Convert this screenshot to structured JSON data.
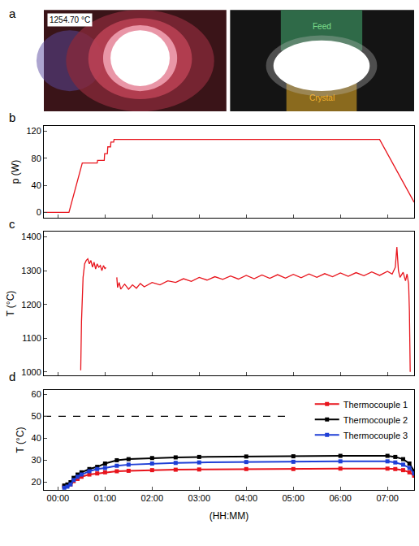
{
  "image_panel": {
    "panel": "a",
    "temperature_label": "1254.70 °C",
    "regions": {
      "feed": "Feed",
      "crystal": "Crystal"
    }
  },
  "chart_data": [
    {
      "panel": "b",
      "type": "line",
      "y_label": "p (W)",
      "xlim": [
        -18,
        454
      ],
      "xticks": [
        0,
        60,
        120,
        180,
        240,
        300,
        360,
        420
      ],
      "ylim": [
        -8,
        128
      ],
      "yticks": [
        0,
        40,
        80,
        120
      ],
      "tick_labels": "y",
      "x": [
        -18,
        14,
        31,
        50,
        50.5,
        59,
        59.5,
        63,
        63.5,
        67,
        67.5,
        71,
        71.5,
        75,
        410,
        454
      ],
      "series": [
        {
          "color": "#e8141c",
          "values": [
            0,
            0,
            73,
            73,
            77,
            77,
            87,
            87,
            97,
            97,
            104,
            104,
            108,
            108,
            108,
            15
          ]
        }
      ]
    },
    {
      "panel": "c",
      "type": "line",
      "y_label": "T (°C)",
      "xlim": [
        -18,
        454
      ],
      "xticks": [
        0,
        60,
        120,
        180,
        240,
        300,
        360,
        420
      ],
      "ylim": [
        990,
        1415
      ],
      "yticks": [
        1000,
        1100,
        1200,
        1300,
        1400
      ],
      "tick_labels": "y",
      "x": [
        29,
        30,
        32,
        34,
        36,
        38,
        40,
        42,
        44,
        46,
        48,
        50,
        52,
        54,
        56,
        58,
        60,
        61,
        62,
        75,
        76,
        78,
        80,
        85,
        90,
        95,
        100,
        105,
        110,
        120,
        130,
        140,
        150,
        160,
        170,
        180,
        190,
        200,
        210,
        220,
        230,
        240,
        250,
        260,
        270,
        280,
        290,
        300,
        310,
        320,
        330,
        340,
        350,
        360,
        370,
        380,
        390,
        400,
        410,
        420,
        426,
        430,
        432,
        434,
        436,
        440,
        443,
        445,
        447,
        448,
        449
      ],
      "series": [
        {
          "color": "#e8141c",
          "values": [
            1005,
            1150,
            1280,
            1320,
            1330,
            1335,
            1320,
            1330,
            1310,
            1325,
            1305,
            1320,
            1310,
            1315,
            1300,
            1315,
            1305,
            1310,
            null,
            1280,
            1250,
            1265,
            1245,
            1260,
            1245,
            1258,
            1248,
            1262,
            1252,
            1265,
            1258,
            1270,
            1265,
            1276,
            1268,
            1280,
            1272,
            1282,
            1274,
            1284,
            1275,
            1286,
            1276,
            1287,
            1277,
            1288,
            1278,
            1289,
            1279,
            1290,
            1280,
            1291,
            1282,
            1293,
            1283,
            1294,
            1285,
            1296,
            1286,
            1298,
            1290,
            1310,
            1370,
            1300,
            1280,
            1295,
            1270,
            1290,
            1260,
            1180,
            1000
          ]
        }
      ]
    },
    {
      "panel": "d",
      "type": "line",
      "y_label": "T (°C)",
      "x_label": "(HH:MM)",
      "xlim": [
        -18,
        454
      ],
      "xticks": [
        {
          "value": 0,
          "label": "00:00"
        },
        {
          "value": 60,
          "label": "01:00"
        },
        {
          "value": 120,
          "label": "02:00"
        },
        {
          "value": 180,
          "label": "03:00"
        },
        {
          "value": 240,
          "label": "04:00"
        },
        {
          "value": 300,
          "label": "05:00"
        },
        {
          "value": 360,
          "label": "06:00"
        },
        {
          "value": 420,
          "label": "07:00"
        }
      ],
      "ylim": [
        16.5,
        62
      ],
      "yticks": [
        20,
        30,
        40,
        50,
        60
      ],
      "legend": "upper right",
      "x": [
        8,
        12,
        16,
        20,
        25,
        30,
        40,
        50,
        60,
        75,
        90,
        120,
        150,
        180,
        240,
        300,
        360,
        420,
        430,
        440,
        448,
        454
      ],
      "series": [
        {
          "name": "Thermocouple 1",
          "color": "#e8141c",
          "marker": "square",
          "values": [
            18,
            18.5,
            19,
            20.5,
            21.5,
            22.5,
            23.5,
            24,
            24.5,
            25,
            25.2,
            25.5,
            25.7,
            25.8,
            26,
            26,
            26.2,
            26.2,
            26,
            25.5,
            24.5,
            23
          ]
        },
        {
          "name": "Thermocouple 2",
          "color": "#000000",
          "marker": "square",
          "values": [
            18.5,
            19,
            20,
            22,
            23.5,
            24.5,
            26,
            27,
            28.5,
            30,
            30.5,
            31,
            31.3,
            31.5,
            31.7,
            31.8,
            32,
            32,
            31.5,
            30.5,
            28.5,
            25
          ]
        },
        {
          "name": "Thermocouple 3",
          "color": "#1f3fd6",
          "marker": "square",
          "values": [
            17.5,
            18,
            19,
            21,
            22.5,
            23.5,
            25,
            26,
            26.5,
            27.5,
            28,
            28.5,
            28.8,
            29,
            29.2,
            29.3,
            29.5,
            29.5,
            29,
            28,
            26.5,
            24
          ]
        },
        {
          "color": "#000000",
          "line_style": "dash",
          "x": [
            -18,
            296
          ],
          "values": [
            50,
            50
          ]
        }
      ]
    }
  ]
}
